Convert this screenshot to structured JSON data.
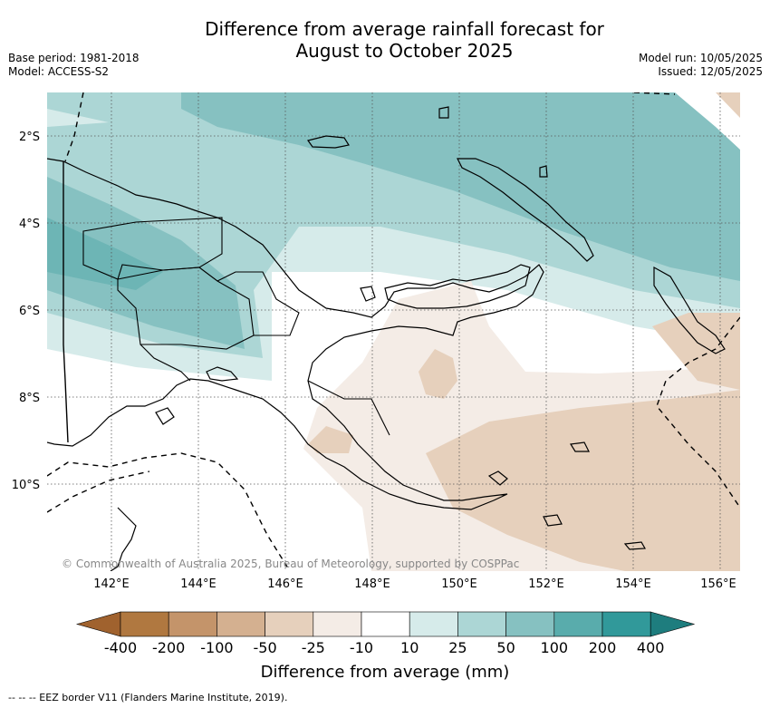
{
  "header": {
    "title_line1": "Difference from average rainfall forecast for",
    "title_line2": "August to October 2025",
    "base_period": "Base period: 1981-2018",
    "model": "Model: ACCESS-S2",
    "model_run": "Model run: 10/05/2025",
    "issued": "Issued: 12/05/2025"
  },
  "map": {
    "lat_labels": [
      "2°S",
      "4°S",
      "6°S",
      "8°S",
      "10°S"
    ],
    "lon_labels": [
      "142°E",
      "144°E",
      "146°E",
      "148°E",
      "150°E",
      "152°E",
      "154°E",
      "156°E"
    ],
    "copyright": "© Commonwealth of Australia 2025, Bureau of Meteorology, supported by COSPPac"
  },
  "colorbar": {
    "title": "Difference from average (mm)",
    "tick_labels": [
      "-400",
      "-200",
      "-100",
      "-50",
      "-25",
      "-10",
      "10",
      "25",
      "50",
      "100",
      "200",
      "400"
    ],
    "colors": [
      "#a0622e",
      "#b07840",
      "#c4946a",
      "#d4b090",
      "#e6d0bc",
      "#f4ece6",
      "#ffffff",
      "#d6ebea",
      "#acd6d5",
      "#86c1c1",
      "#59acac",
      "#31999a",
      "#1e7d7e"
    ]
  },
  "legend_note": "--  --  -- EEZ border V11 (Flanders Marine Institute, 2019)."
}
